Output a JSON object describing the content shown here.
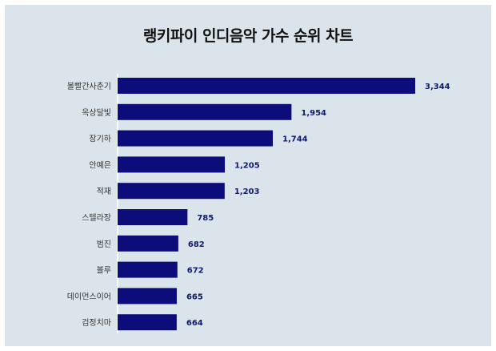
{
  "chart_data": {
    "type": "bar",
    "orientation": "horizontal",
    "title": "랭키파이 인디음악 가수 순위 차트",
    "categories": [
      "볼빨간사춘기",
      "옥상달빛",
      "장기하",
      "안예은",
      "적재",
      "스텔라장",
      "범진",
      "볼루",
      "데이먼스이어",
      "검정치마"
    ],
    "values": [
      3344,
      1954,
      1744,
      1205,
      1203,
      785,
      682,
      672,
      665,
      664
    ],
    "value_labels": [
      "3,344",
      "1,954",
      "1,744",
      "1,205",
      "1,203",
      "785",
      "682",
      "672",
      "665",
      "664"
    ],
    "xlim": [
      0,
      3344
    ],
    "grid": false,
    "legend": "none",
    "colors": {
      "bar": "#0c0c7a",
      "value_text": "#0c1a6e",
      "panel_bg": "#dbe4ea",
      "axis": "#ffffff"
    }
  }
}
